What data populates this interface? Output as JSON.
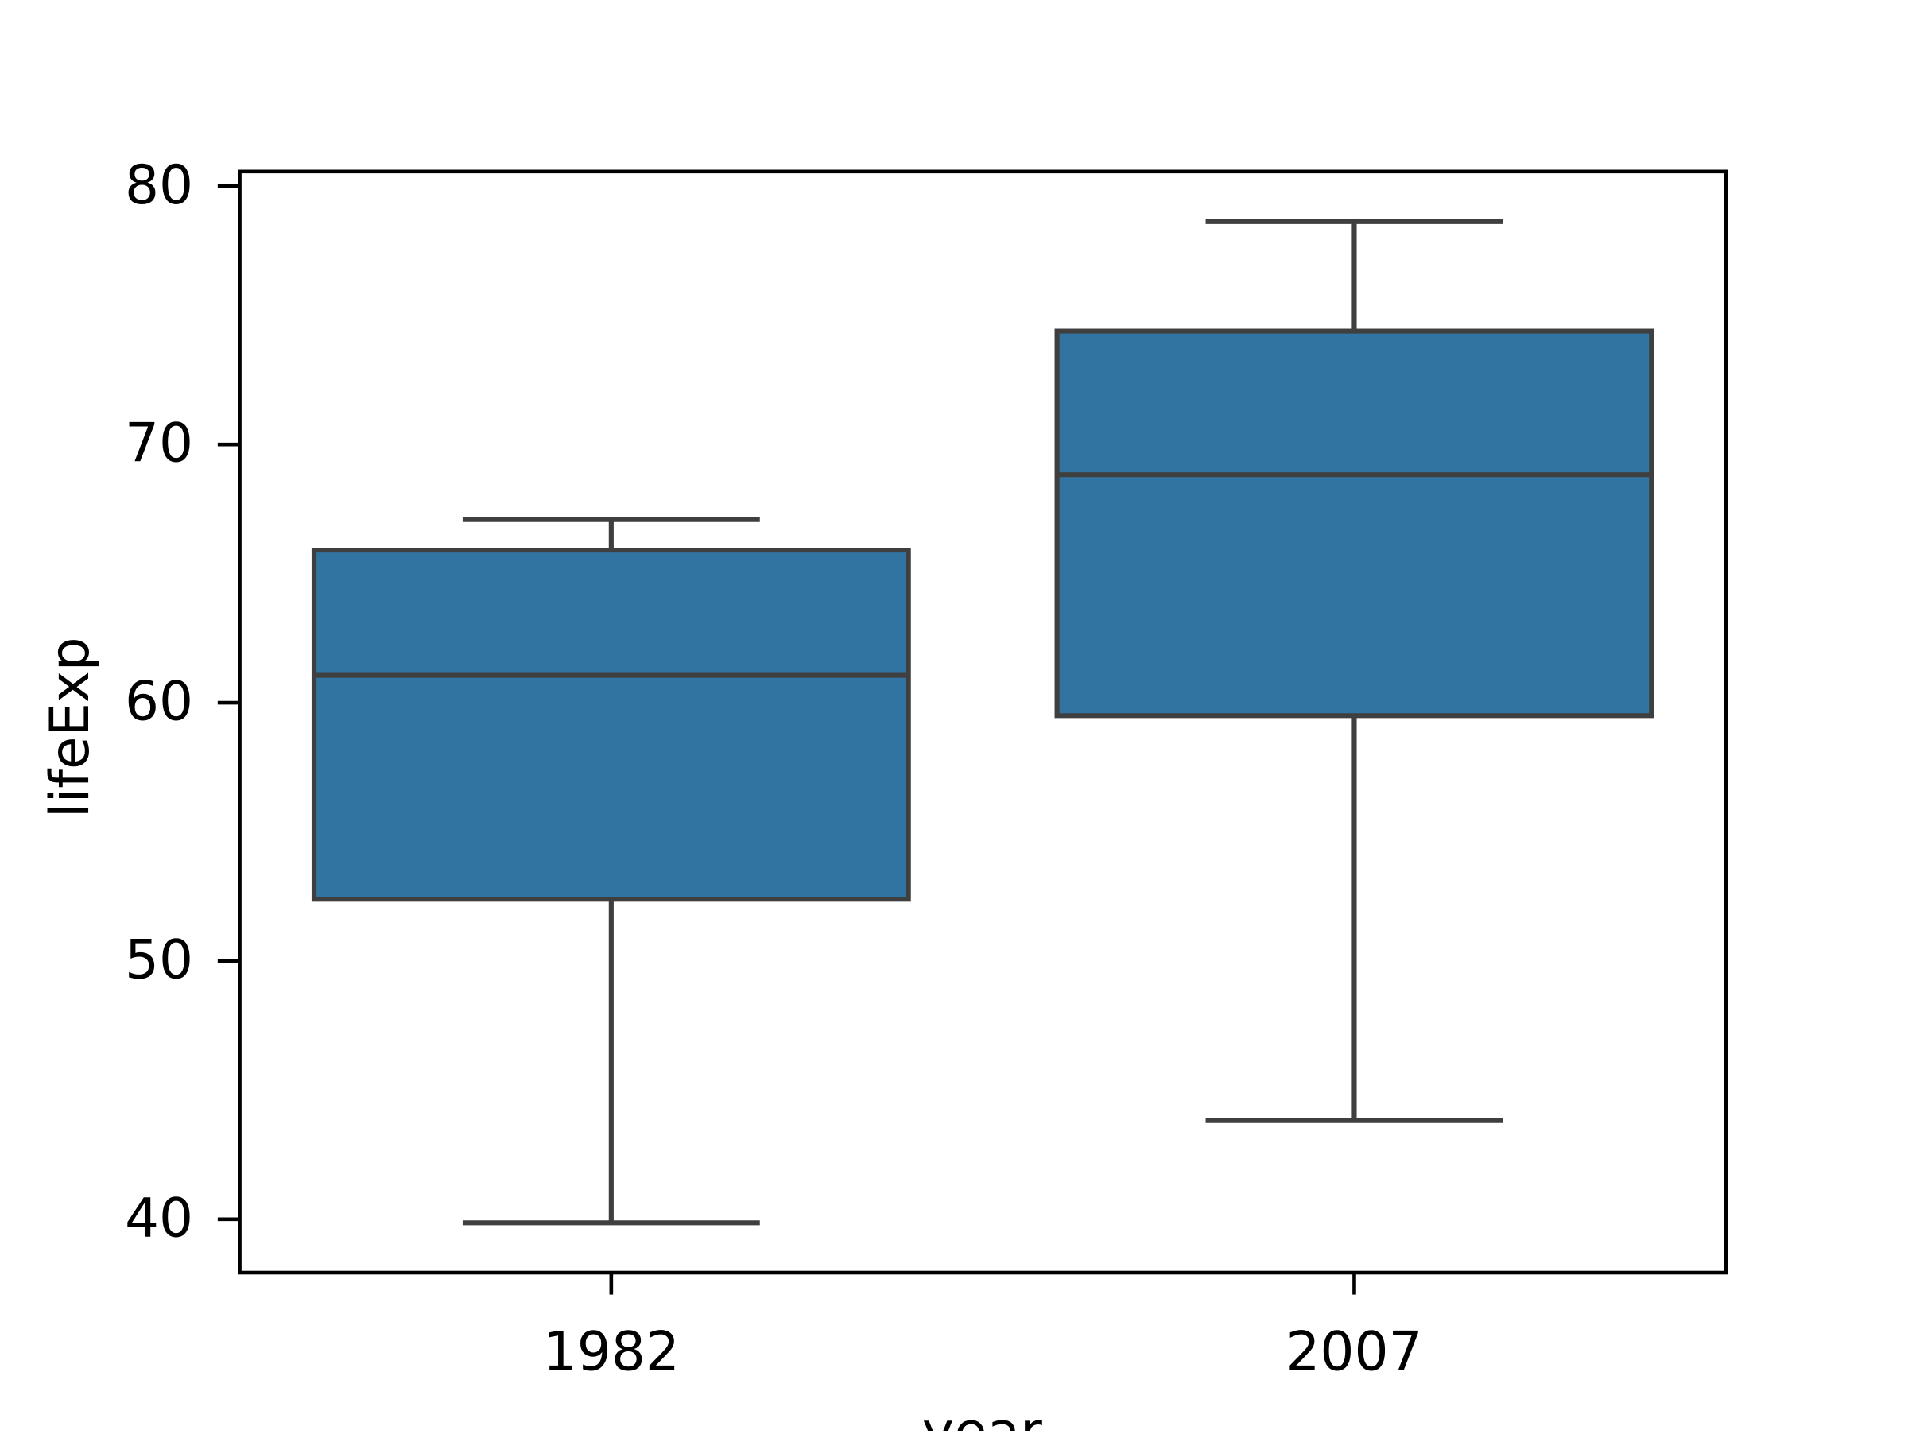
{
  "chart_data": {
    "type": "box",
    "x_label": "year",
    "y_label": "lifeExp",
    "categories": [
      "1982",
      "2007"
    ],
    "boxes": [
      {
        "whislo": 39.86,
        "q1": 52.39,
        "med": 61.06,
        "q3": 65.91,
        "whishi": 67.09
      },
      {
        "whislo": 43.82,
        "q1": 59.5,
        "med": 68.83,
        "q3": 74.39,
        "whishi": 78.63
      }
    ],
    "color": "#3274a1",
    "ylim": [
      37.93,
      80.57
    ],
    "yticks": [
      40,
      50,
      60,
      70,
      80
    ]
  }
}
